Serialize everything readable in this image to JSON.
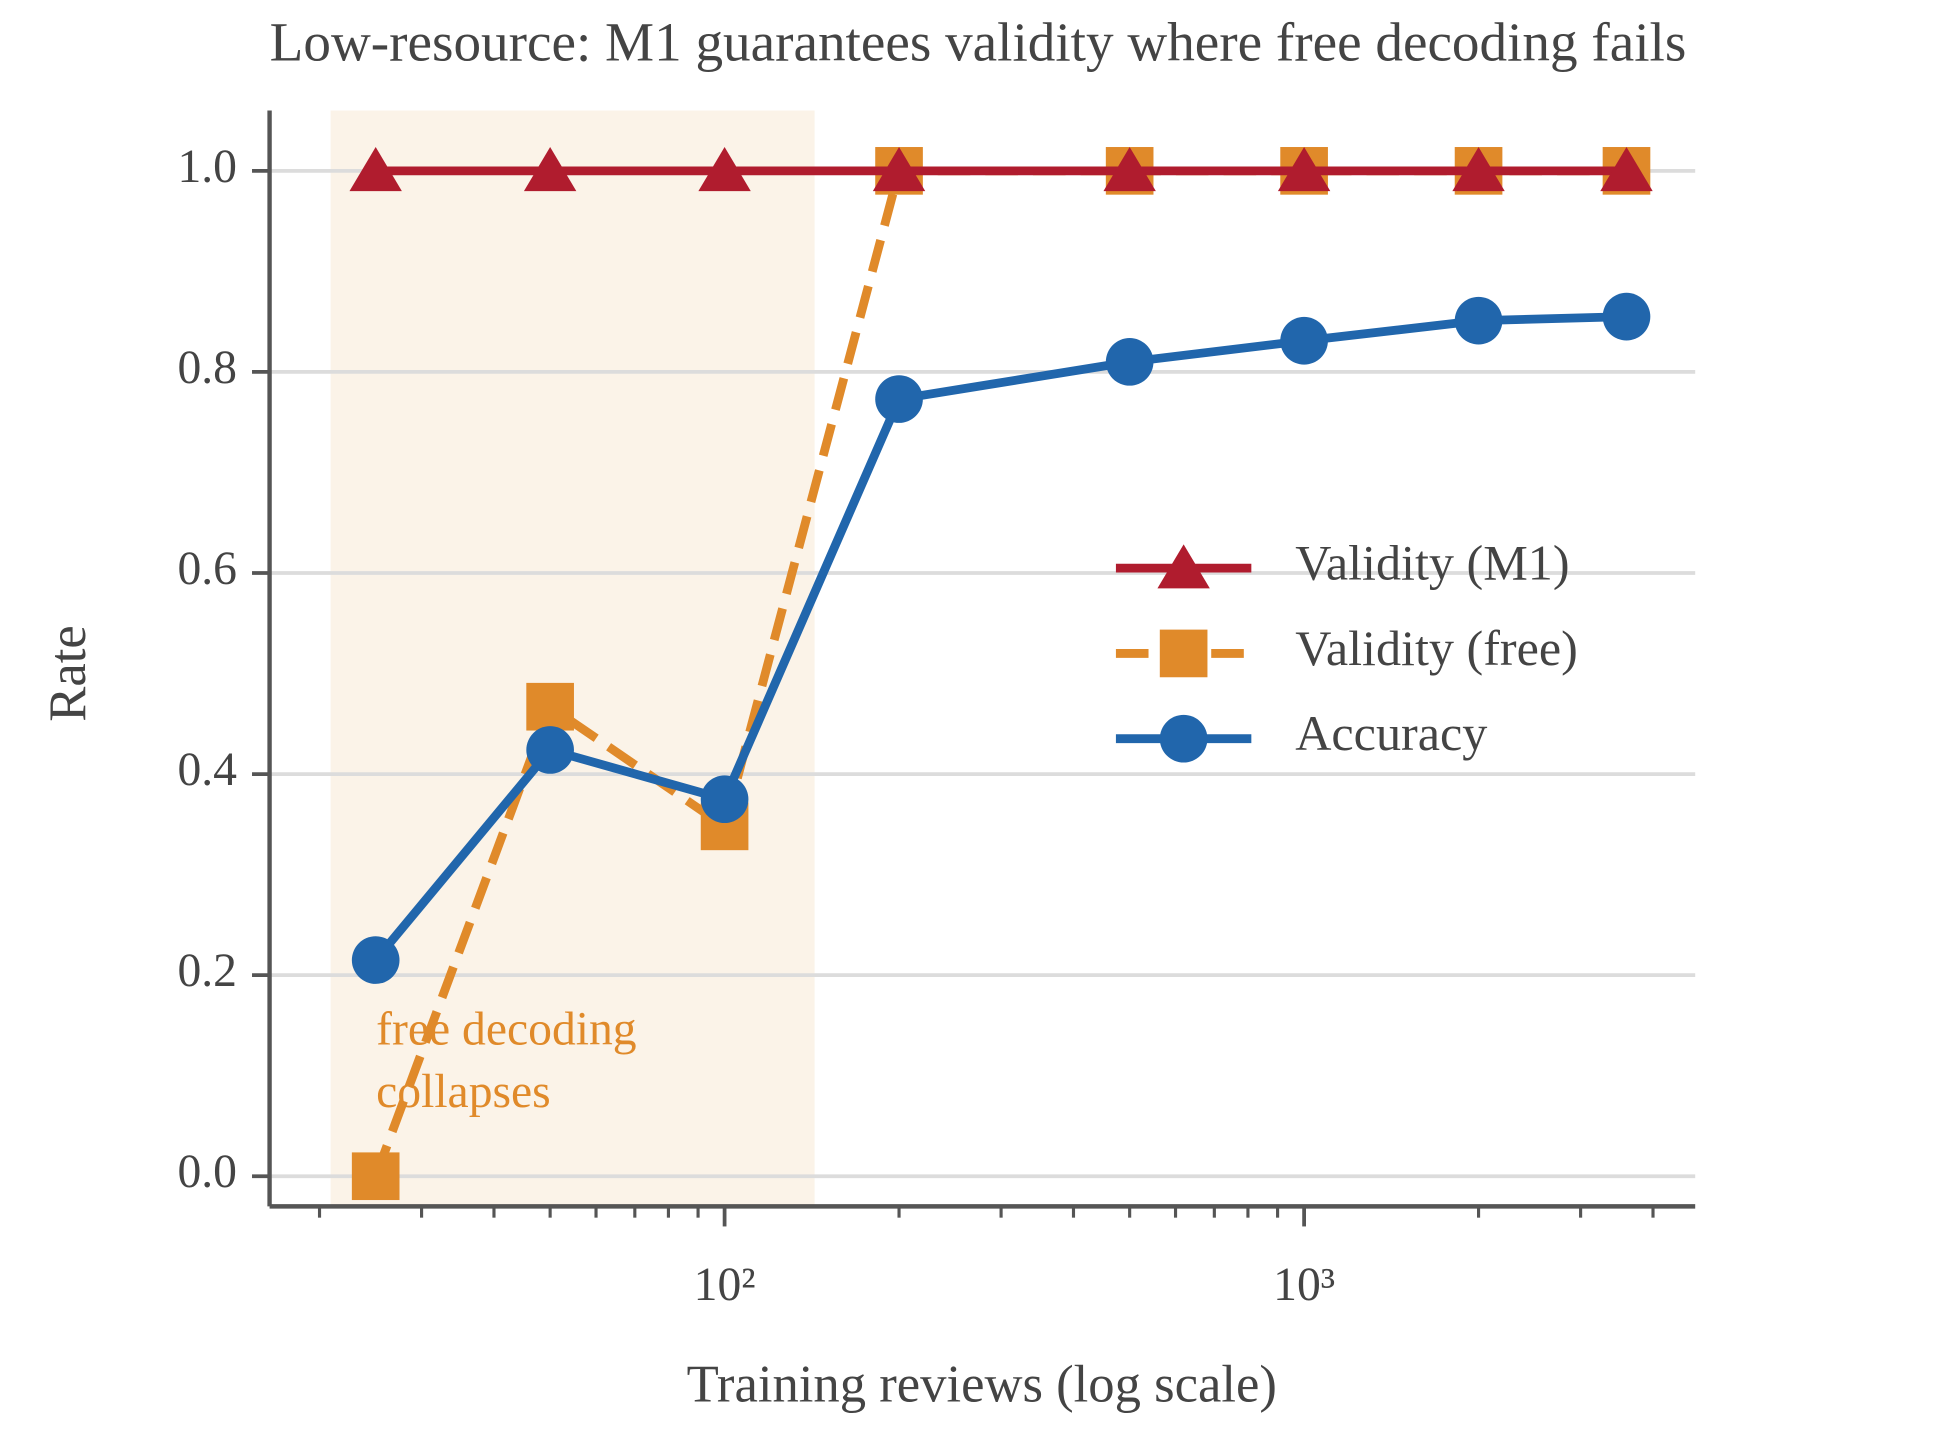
{
  "chart_data": {
    "type": "line",
    "title": "Low-resource: M1 guarantees validity where free decoding fails",
    "xlabel": "Training reviews (log scale)",
    "ylabel": "Rate",
    "xscale": "log",
    "x": [
      25,
      50,
      100,
      200,
      500,
      1000,
      2000,
      3600
    ],
    "series": [
      {
        "name": "Validity (M1)",
        "color": "#b01c2e",
        "marker": "triangle",
        "linestyle": "solid",
        "values": [
          1,
          1,
          1,
          1,
          1,
          1,
          1,
          1
        ]
      },
      {
        "name": "Validity (free)",
        "color": "#e08a2a",
        "marker": "square",
        "linestyle": "dashed",
        "values": [
          0,
          0.467,
          0.348,
          1,
          1,
          1,
          1,
          1
        ]
      },
      {
        "name": "Accuracy",
        "color": "#2166ac",
        "marker": "circle",
        "linestyle": "solid",
        "values": [
          0.215,
          0.424,
          0.375,
          0.773,
          0.81,
          0.831,
          0.851,
          0.855
        ]
      }
    ],
    "xlim": [
      16.4,
      4730
    ],
    "ylim": [
      -0.03,
      1.06
    ],
    "xticks": [
      {
        "value": 100,
        "label": "10²"
      },
      {
        "value": 1000,
        "label": "10³"
      }
    ],
    "xminorticks": [
      20,
      30,
      40,
      50,
      60,
      70,
      80,
      90,
      200,
      300,
      400,
      500,
      600,
      700,
      800,
      900,
      2000,
      3000,
      4000
    ],
    "yticks": [
      {
        "value": 0,
        "label": "0.0"
      },
      0.2,
      0.4,
      0.6,
      0.8,
      {
        "value": 1,
        "label": "1.0"
      }
    ],
    "grid": true,
    "legend": "center right",
    "highlight": {
      "xrange": [
        20.9,
        143
      ],
      "color": "#fbf3e8"
    },
    "annotation": {
      "lines": [
        "free decoding",
        "collapses"
      ],
      "color": "#e08a2a"
    }
  }
}
